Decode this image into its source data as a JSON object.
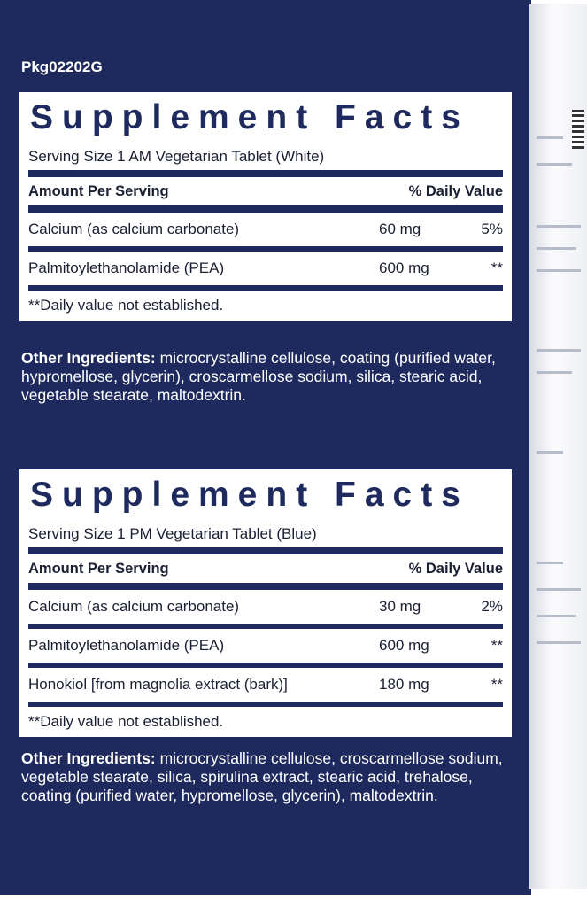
{
  "package_code": "Pkg02202G",
  "panels": [
    {
      "title": "Supplement Facts",
      "serving_size": "Serving Size 1 AM Vegetarian Tablet (White)",
      "header": {
        "left": "Amount Per Serving",
        "right": "% Daily Value"
      },
      "rows": [
        {
          "name": "Calcium (as calcium carbonate)",
          "amount": "60 mg",
          "dv": "5%"
        },
        {
          "name": "Palmitoylethanolamide (PEA)",
          "amount": "600 mg",
          "dv": "**"
        }
      ],
      "footnote": "**Daily value not established.",
      "other_ingredients": {
        "label": "Other Ingredients:",
        "text": "microcrystalline cellulose, coating (purified water, hypromellose, glycerin), croscarmellose sodium, silica, stearic acid, vegetable stearate, maltodextrin."
      }
    },
    {
      "title": "Supplement Facts",
      "serving_size": "Serving Size 1 PM Vegetarian Tablet (Blue)",
      "header": {
        "left": "Amount Per Serving",
        "right": "% Daily Value"
      },
      "rows": [
        {
          "name": "Calcium (as calcium carbonate)",
          "amount": "30 mg",
          "dv": "2%"
        },
        {
          "name": "Palmitoylethanolamide (PEA)",
          "amount": "600 mg",
          "dv": "**"
        },
        {
          "name": "Honokiol [from magnolia extract (bark)]",
          "amount": "180 mg",
          "dv": "**"
        }
      ],
      "footnote": "**Daily value not established.",
      "other_ingredients": {
        "label": "Other Ingredients:",
        "text": "microcrystalline cellulose, croscarmellose sodium, vegetable stearate, silica, spirulina extract, stearic acid, trehalose, coating (purified water, hypromellose, glycerin), maltodextrin."
      }
    }
  ]
}
